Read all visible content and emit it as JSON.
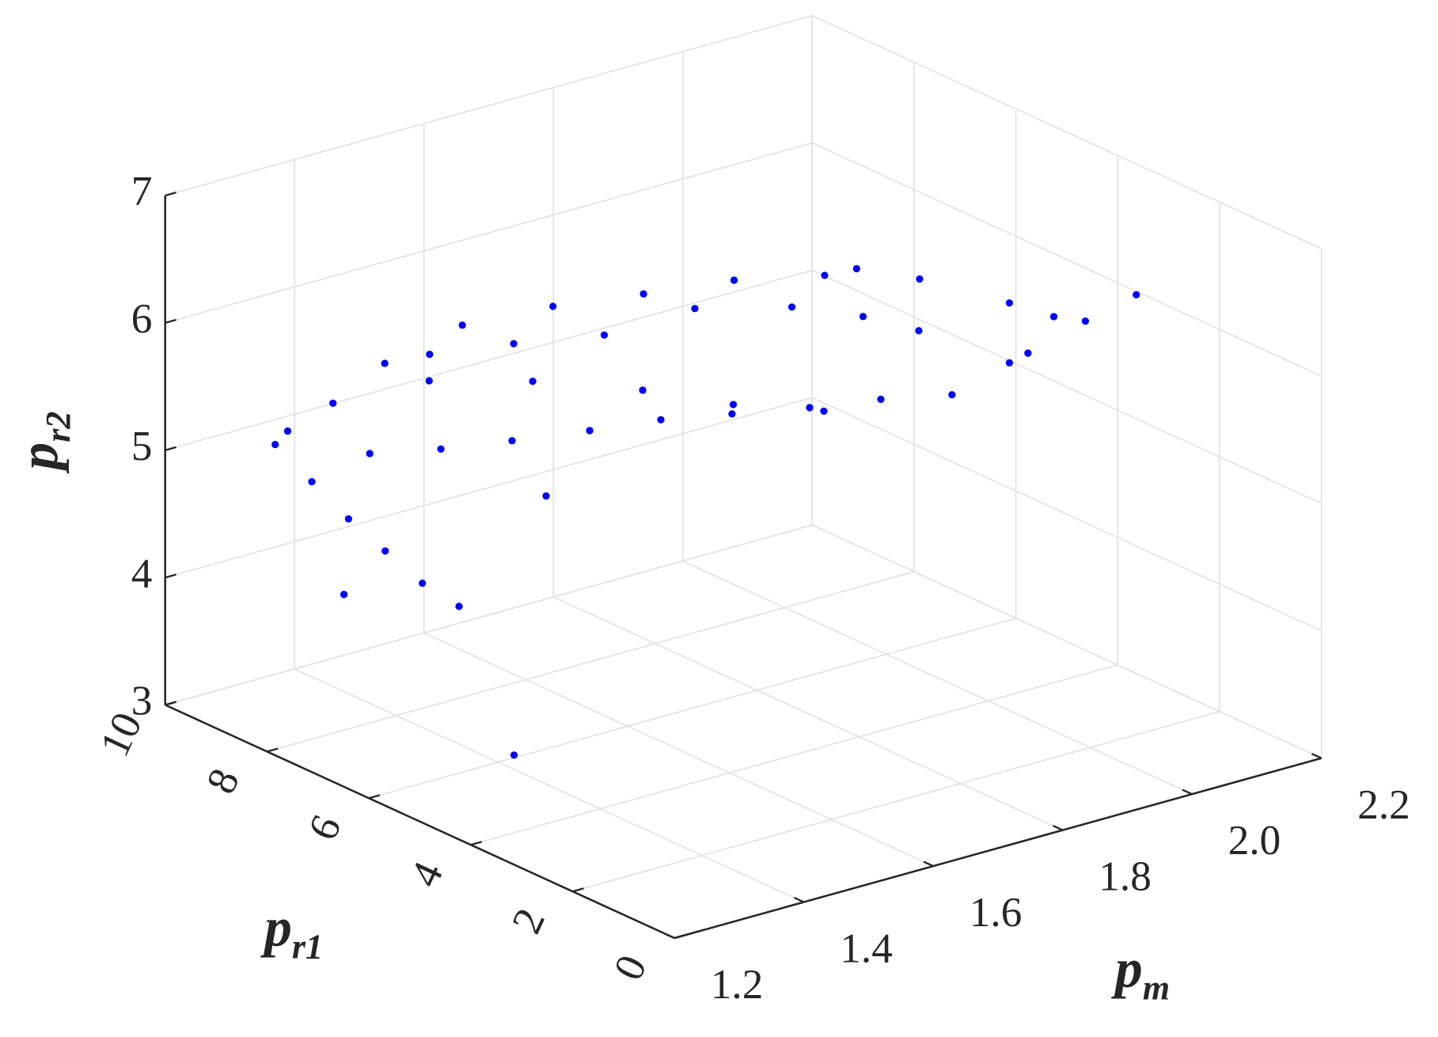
{
  "chart_data": {
    "type": "scatter3d",
    "color": "#0000ff",
    "xlabel": {
      "text": "p",
      "sub": "m"
    },
    "ylabel": {
      "text": "p",
      "sub": "r1"
    },
    "zlabel": {
      "text": "p",
      "sub": "r2"
    },
    "xlim": [
      1.2,
      2.2
    ],
    "ylim": [
      0,
      10
    ],
    "zlim": [
      3,
      7
    ],
    "xticks": [
      1.2,
      1.4,
      1.6,
      1.8,
      {
        "value": 2,
        "label": "2.0"
      },
      2.2
    ],
    "yticks": [
      0,
      2,
      4,
      6,
      8,
      10
    ],
    "zticks": [
      3,
      4,
      5,
      6,
      7
    ],
    "grid": true,
    "x": [
      1.2,
      1.2,
      1.2,
      1.2,
      1.2,
      1.2,
      1.28,
      1.39,
      1.5,
      1.62,
      1.73,
      1.84,
      1.96,
      2.07,
      2.18,
      2.14,
      2.15,
      2.15,
      1.49,
      1.65,
      1.82,
      1.96,
      2.1,
      1.53,
      1.66,
      1.8,
      1.94,
      2.09,
      2.2,
      2.05,
      2.19,
      1.35,
      1.42,
      1.5,
      1.62,
      1.76,
      1.9,
      2.04,
      2.18,
      2.13,
      2.19,
      2.18,
      1.2,
      1.2,
      1.2,
      2.19
    ],
    "y": [
      7.84,
      7.12,
      6.4,
      5.68,
      4.95,
      4.23,
      7,
      7,
      7,
      7,
      7,
      7,
      7,
      7,
      7,
      5,
      4,
      3,
      8.5,
      8.5,
      8.5,
      8.5,
      8.5,
      9,
      9,
      9,
      9,
      9,
      9,
      6,
      6,
      9.5,
      9.5,
      9.5,
      9.5,
      9.5,
      9.5,
      9.5,
      9.5,
      7,
      6,
      5,
      6.49,
      3.15,
      2.52,
      9
    ],
    "z": [
      5.44,
      5.28,
      5.12,
      5.0,
      4.88,
      4.83,
      5.41,
      5.29,
      5.2,
      5.11,
      5.04,
      4.93,
      4.81,
      4.72,
      4.6,
      5.35,
      5.77,
      6.16,
      5.41,
      5.18,
      4.87,
      4.56,
      4.31,
      5.47,
      5.37,
      5.24,
      5.25,
      5.05,
      4.82,
      5.47,
      5.02,
      5.03,
      5.15,
      5.35,
      5.48,
      5.43,
      5.33,
      5.24,
      5.08,
      5.58,
      5.49,
      5.58,
      4.51,
      3.86,
      6.01,
      5.21
    ]
  }
}
